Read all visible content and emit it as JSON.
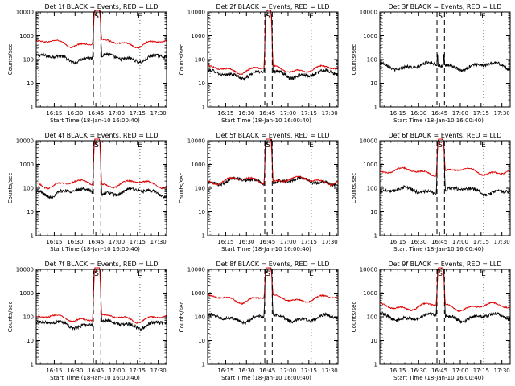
{
  "figure": {
    "colors": {
      "events": "#000000",
      "lld": "#dd0000",
      "frame": "#000000",
      "background": "#ffffff"
    }
  },
  "chart_data": [
    {
      "type": "line",
      "title": "Det 1f BLACK = Events, RED = LLD",
      "xlabel": "Start Time (18-Jan-10 16:00:40)",
      "ylabel": "Counts/sec",
      "yscale": "log",
      "ylim": [
        1,
        10000
      ],
      "xlim": [
        16.033,
        17.6
      ],
      "xticks": [
        "16:15",
        "16:30",
        "16:45",
        "17:00",
        "17:15",
        "17:30"
      ],
      "yticks": [
        "1",
        "10",
        "100",
        "1000",
        "10000"
      ],
      "markers": [
        {
          "label": "S",
          "at": 16.76
        },
        {
          "label": "E",
          "at": 17.28
        }
      ],
      "dashed_lines": [
        16.72,
        16.81
      ],
      "series": [
        {
          "name": "Events",
          "color": "#000000",
          "base": 120,
          "peak": 10000
        },
        {
          "name": "LLD",
          "color": "#dd0000",
          "base": 500,
          "peak": 10000
        }
      ]
    },
    {
      "type": "line",
      "title": "Det 2f BLACK = Events, RED = LLD",
      "xlabel": "Start Time (18-Jan-10 16:00:40)",
      "ylabel": "Counts/sec",
      "yscale": "log",
      "ylim": [
        1,
        10000
      ],
      "xlim": [
        16.033,
        17.6
      ],
      "xticks": [
        "16:15",
        "16:30",
        "16:45",
        "17:00",
        "17:15",
        "17:30"
      ],
      "yticks": [
        "1",
        "10",
        "100",
        "1000",
        "10000"
      ],
      "markers": [
        {
          "label": "S",
          "at": 16.76
        },
        {
          "label": "E",
          "at": 17.28
        }
      ],
      "dashed_lines": [
        16.72,
        16.81
      ],
      "series": [
        {
          "name": "Events",
          "color": "#000000",
          "base": 25,
          "peak": 10000
        },
        {
          "name": "LLD",
          "color": "#dd0000",
          "base": 40,
          "peak": 10000
        }
      ]
    },
    {
      "type": "line",
      "title": "Det 3f BLACK = Events, RED = LLD",
      "xlabel": "Start Time (18-Jan-10 16:00:40)",
      "ylabel": "Counts/sec",
      "yscale": "log",
      "ylim": [
        1,
        10000
      ],
      "xlim": [
        16.033,
        17.6
      ],
      "xticks": [
        "16:15",
        "16:30",
        "16:45",
        "17:00",
        "17:15",
        "17:30"
      ],
      "yticks": [
        "1",
        "10",
        "100",
        "1000",
        "10000"
      ],
      "markers": [
        {
          "label": "S",
          "at": 16.76
        },
        {
          "label": "E",
          "at": 17.28
        }
      ],
      "dashed_lines": [
        16.72,
        16.81
      ],
      "series": [
        {
          "name": "Events",
          "color": "#000000",
          "base": 55,
          "peak": 150
        }
      ]
    },
    {
      "type": "line",
      "title": "Det 4f BLACK = Events, RED = LLD",
      "xlabel": "Start Time (18-Jan-10 16:00:40)",
      "ylabel": "Counts/sec",
      "yscale": "log",
      "ylim": [
        1,
        10000
      ],
      "xlim": [
        16.033,
        17.6
      ],
      "xticks": [
        "16:15",
        "16:30",
        "16:45",
        "17:00",
        "17:15",
        "17:30"
      ],
      "yticks": [
        "1",
        "10",
        "100",
        "1000",
        "10000"
      ],
      "markers": [
        {
          "label": "S",
          "at": 16.76
        },
        {
          "label": "E",
          "at": 17.28
        }
      ],
      "dashed_lines": [
        16.72,
        16.81
      ],
      "series": [
        {
          "name": "Events",
          "color": "#000000",
          "base": 70,
          "peak": 10000
        },
        {
          "name": "LLD",
          "color": "#dd0000",
          "base": 160,
          "peak": 10000
        }
      ]
    },
    {
      "type": "line",
      "title": "Det 5f BLACK = Events, RED = LLD",
      "xlabel": "Start Time (18-Jan-10 16:00:40)",
      "ylabel": "Counts/sec",
      "yscale": "log",
      "ylim": [
        1,
        10000
      ],
      "xlim": [
        16.033,
        17.6
      ],
      "xticks": [
        "16:15",
        "16:30",
        "16:45",
        "17:00",
        "17:15",
        "17:30"
      ],
      "yticks": [
        "1",
        "10",
        "100",
        "1000",
        "10000"
      ],
      "markers": [
        {
          "label": "S",
          "at": 16.76
        },
        {
          "label": "E",
          "at": 17.28
        }
      ],
      "dashed_lines": [
        16.72,
        16.81
      ],
      "series": [
        {
          "name": "Events",
          "color": "#000000",
          "base": 200,
          "peak": 10000
        },
        {
          "name": "LLD",
          "color": "#dd0000",
          "base": 220,
          "peak": 10000
        }
      ]
    },
    {
      "type": "line",
      "title": "Det 6f BLACK = Events, RED = LLD",
      "xlabel": "Start Time (18-Jan-10 16:00:40)",
      "ylabel": "Counts/sec",
      "yscale": "log",
      "ylim": [
        1,
        10000
      ],
      "xlim": [
        16.033,
        17.6
      ],
      "xticks": [
        "16:15",
        "16:30",
        "16:45",
        "17:00",
        "17:15",
        "17:30"
      ],
      "yticks": [
        "1",
        "10",
        "100",
        "1000",
        "10000"
      ],
      "markers": [
        {
          "label": "S",
          "at": 16.76
        },
        {
          "label": "E",
          "at": 17.28
        }
      ],
      "dashed_lines": [
        16.72,
        16.81
      ],
      "series": [
        {
          "name": "Events",
          "color": "#000000",
          "base": 80,
          "peak": 10000
        },
        {
          "name": "LLD",
          "color": "#dd0000",
          "base": 520,
          "peak": 10000
        }
      ]
    },
    {
      "type": "line",
      "title": "Det 7f BLACK = Events, RED = LLD",
      "xlabel": "Start Time (18-Jan-10 16:00:40)",
      "ylabel": "Counts/sec",
      "yscale": "log",
      "ylim": [
        1,
        10000
      ],
      "xlim": [
        16.033,
        17.6
      ],
      "xticks": [
        "16:15",
        "16:30",
        "16:45",
        "17:00",
        "17:15",
        "17:30"
      ],
      "yticks": [
        "1",
        "10",
        "100",
        "1000",
        "10000"
      ],
      "markers": [
        {
          "label": "S",
          "at": 16.76
        },
        {
          "label": "E",
          "at": 17.28
        }
      ],
      "dashed_lines": [
        16.72,
        16.81
      ],
      "series": [
        {
          "name": "Events",
          "color": "#000000",
          "base": 50,
          "peak": 10000
        },
        {
          "name": "LLD",
          "color": "#dd0000",
          "base": 90,
          "peak": 10000
        }
      ]
    },
    {
      "type": "line",
      "title": "Det 8f BLACK = Events, RED = LLD",
      "xlabel": "Start Time (18-Jan-10 16:00:40)",
      "ylabel": "Counts/sec",
      "yscale": "log",
      "ylim": [
        1,
        10000
      ],
      "xlim": [
        16.033,
        17.6
      ],
      "xticks": [
        "16:15",
        "16:30",
        "16:45",
        "17:00",
        "17:15",
        "17:30"
      ],
      "yticks": [
        "1",
        "10",
        "100",
        "1000",
        "10000"
      ],
      "markers": [
        {
          "label": "S",
          "at": 16.76
        },
        {
          "label": "E",
          "at": 17.28
        }
      ],
      "dashed_lines": [
        16.72,
        16.81
      ],
      "series": [
        {
          "name": "Events",
          "color": "#000000",
          "base": 90,
          "peak": 10000
        },
        {
          "name": "LLD",
          "color": "#dd0000",
          "base": 600,
          "peak": 10000
        }
      ]
    },
    {
      "type": "line",
      "title": "Det 9f BLACK = Events, RED = LLD",
      "xlabel": "Start Time (18-Jan-10 16:00:40)",
      "ylabel": "Counts/sec",
      "yscale": "log",
      "ylim": [
        1,
        10000
      ],
      "xlim": [
        16.033,
        17.6
      ],
      "xticks": [
        "16:15",
        "16:30",
        "16:45",
        "17:00",
        "17:15",
        "17:30"
      ],
      "yticks": [
        "1",
        "10",
        "100",
        "1000",
        "10000"
      ],
      "markers": [
        {
          "label": "S",
          "at": 16.76
        },
        {
          "label": "E",
          "at": 17.28
        }
      ],
      "dashed_lines": [
        16.72,
        16.81
      ],
      "series": [
        {
          "name": "Events",
          "color": "#000000",
          "base": 100,
          "peak": 10000
        },
        {
          "name": "LLD",
          "color": "#dd0000",
          "base": 280,
          "peak": 10000
        }
      ]
    }
  ]
}
